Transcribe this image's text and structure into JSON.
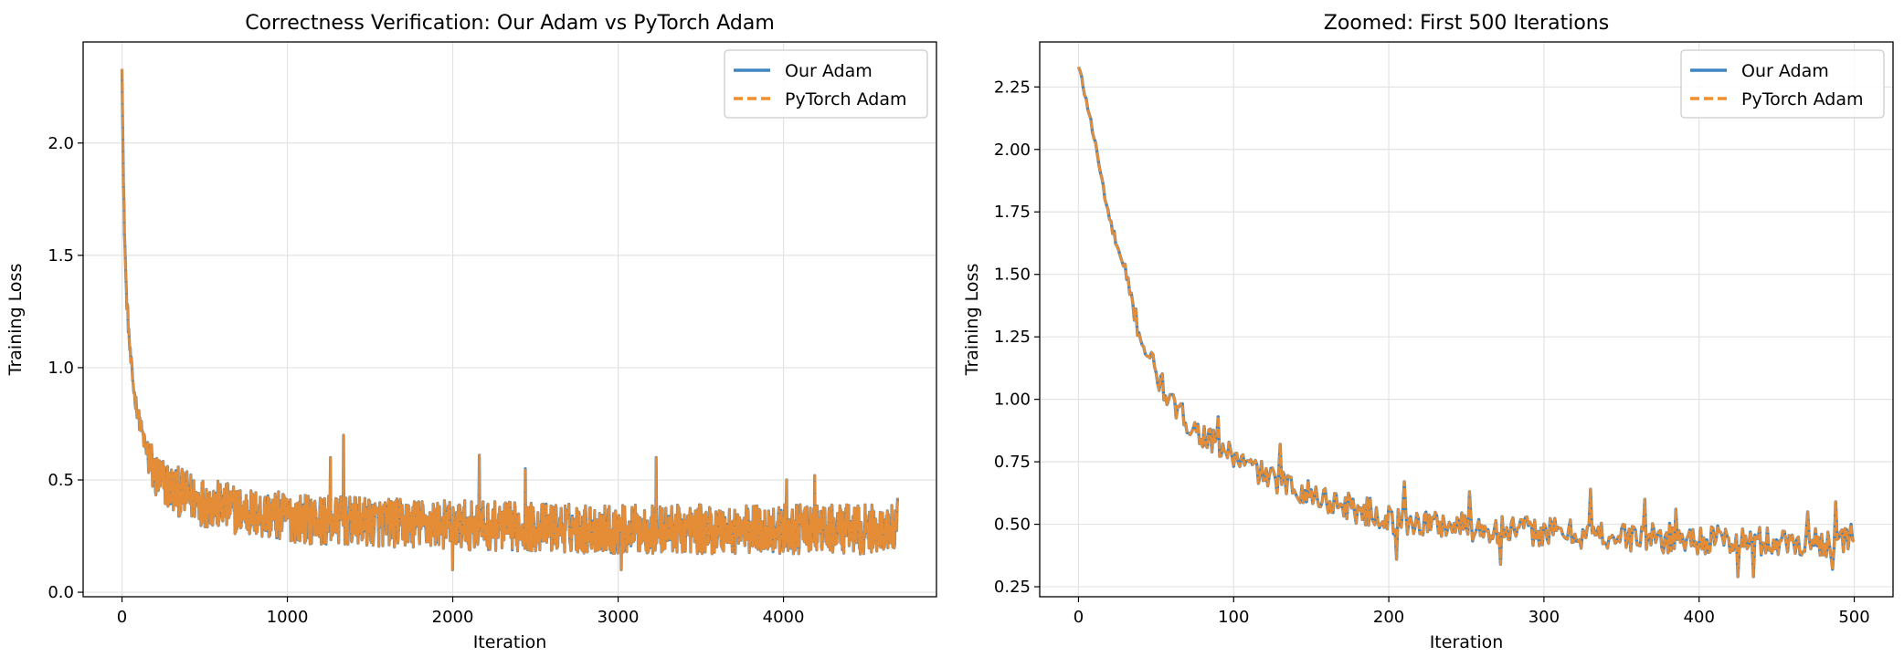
{
  "colors": {
    "our_adam": "#3f85c2",
    "pytorch_adam": "#f28e2b",
    "grid": "#e3e3e3",
    "legend_border": "#cccccc"
  },
  "legend": {
    "labels": [
      "Our Adam",
      "PyTorch Adam"
    ],
    "placement": "top-right"
  },
  "chart_data": [
    {
      "type": "line",
      "title": "Correctness Verification: Our Adam vs PyTorch Adam",
      "xlabel": "Iteration",
      "ylabel": "Training Loss",
      "xlim": [
        -235,
        4925
      ],
      "ylim": [
        -0.02,
        2.45
      ],
      "xticks": [
        0,
        1000,
        2000,
        3000,
        4000
      ],
      "yticks": [
        0.0,
        0.5,
        1.0,
        1.5,
        2.0
      ],
      "ytick_labels": [
        "0.0",
        "0.5",
        "1.0",
        "1.5",
        "2.0"
      ],
      "grid": true,
      "n_points": 4690,
      "series": [
        {
          "name": "Our Adam",
          "style": "solid",
          "trend_x": [
            0,
            10,
            25,
            50,
            75,
            100,
            150,
            200,
            300,
            500,
            800,
            1200,
            2000,
            3000,
            4000,
            4690
          ],
          "trend_y": [
            2.33,
            1.75,
            1.35,
            1.05,
            0.88,
            0.78,
            0.62,
            0.52,
            0.46,
            0.4,
            0.35,
            0.32,
            0.3,
            0.28,
            0.28,
            0.28
          ],
          "spikes": [
            [
              1340,
              0.7
            ],
            [
              1260,
              0.6
            ],
            [
              2160,
              0.61
            ],
            [
              2440,
              0.55
            ],
            [
              3230,
              0.6
            ],
            [
              4190,
              0.52
            ],
            [
              4020,
              0.5
            ],
            [
              4690,
              0.42
            ],
            [
              4700,
              0.16
            ],
            [
              2000,
              0.1
            ],
            [
              3020,
              0.1
            ]
          ]
        },
        {
          "name": "PyTorch Adam",
          "style": "dashed",
          "same_as": "Our Adam"
        }
      ]
    },
    {
      "type": "line",
      "title": "Zoomed: First 500 Iterations",
      "xlabel": "Iteration",
      "ylabel": "Training Loss",
      "xlim": [
        -25,
        525
      ],
      "ylim": [
        0.21,
        2.43
      ],
      "xticks": [
        0,
        100,
        200,
        300,
        400,
        500
      ],
      "yticks": [
        0.25,
        0.5,
        0.75,
        1.0,
        1.25,
        1.5,
        1.75,
        2.0,
        2.25
      ],
      "ytick_labels": [
        "0.25",
        "0.50",
        "0.75",
        "1.00",
        "1.25",
        "1.50",
        "1.75",
        "2.00",
        "2.25"
      ],
      "grid": true,
      "series": [
        {
          "name": "Our Adam",
          "style": "solid",
          "trend_x": [
            0,
            5,
            10,
            15,
            20,
            30,
            40,
            50,
            60,
            75,
            100,
            125,
            150,
            175,
            200,
            250,
            300,
            350,
            400,
            450,
            500
          ],
          "trend_y": [
            2.33,
            2.2,
            2.05,
            1.88,
            1.72,
            1.5,
            1.25,
            1.1,
            0.98,
            0.88,
            0.77,
            0.68,
            0.62,
            0.57,
            0.52,
            0.49,
            0.47,
            0.45,
            0.44,
            0.43,
            0.43
          ],
          "spikes": [
            [
              33,
              1.42
            ],
            [
              48,
              1.18
            ],
            [
              90,
              0.93
            ],
            [
              130,
              0.82
            ],
            [
              210,
              0.67
            ],
            [
              252,
              0.63
            ],
            [
              330,
              0.64
            ],
            [
              365,
              0.6
            ],
            [
              385,
              0.56
            ],
            [
              470,
              0.55
            ],
            [
              488,
              0.59
            ],
            [
              498,
              0.5
            ],
            [
              205,
              0.36
            ],
            [
              272,
              0.34
            ],
            [
              425,
              0.29
            ],
            [
              435,
              0.29
            ],
            [
              486,
              0.32
            ]
          ]
        },
        {
          "name": "PyTorch Adam",
          "style": "dashed",
          "same_as": "Our Adam"
        }
      ]
    }
  ]
}
